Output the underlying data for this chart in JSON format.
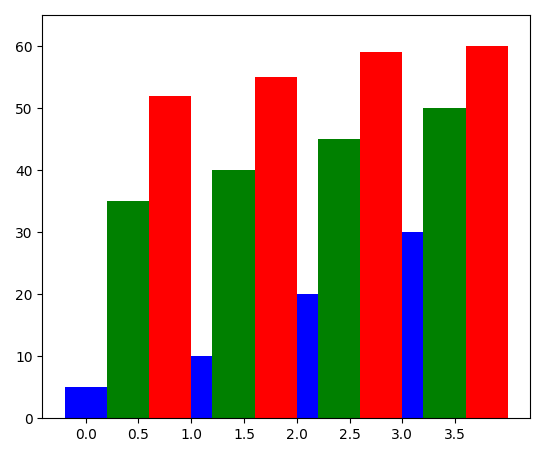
{
  "bar_width": 0.4,
  "blue_values": [
    5,
    10,
    20,
    30
  ],
  "green_values": [
    35,
    40,
    45,
    50
  ],
  "red_values": [
    52,
    55,
    59,
    60
  ],
  "blue_color": "#0000ff",
  "green_color": "#008000",
  "red_color": "#ff0000",
  "blue_x": [
    0.0,
    1.0,
    2.0,
    3.0
  ],
  "green_x": [
    0.4,
    1.4,
    2.4,
    3.4
  ],
  "red_x": [
    0.8,
    1.8,
    2.8,
    3.8
  ],
  "ylim": [
    0,
    65
  ],
  "yticks": [
    0,
    10,
    20,
    30,
    40,
    50,
    60
  ],
  "xticks": [
    0.0,
    0.5,
    1.0,
    1.5,
    2.0,
    2.5,
    3.0,
    3.5
  ],
  "xticklabels": [
    "0.0",
    "0.5",
    "1.0",
    "1.5",
    "2.0",
    "2.5",
    "3.0",
    "3.5"
  ],
  "figsize": [
    5.45,
    4.57
  ],
  "dpi": 100
}
